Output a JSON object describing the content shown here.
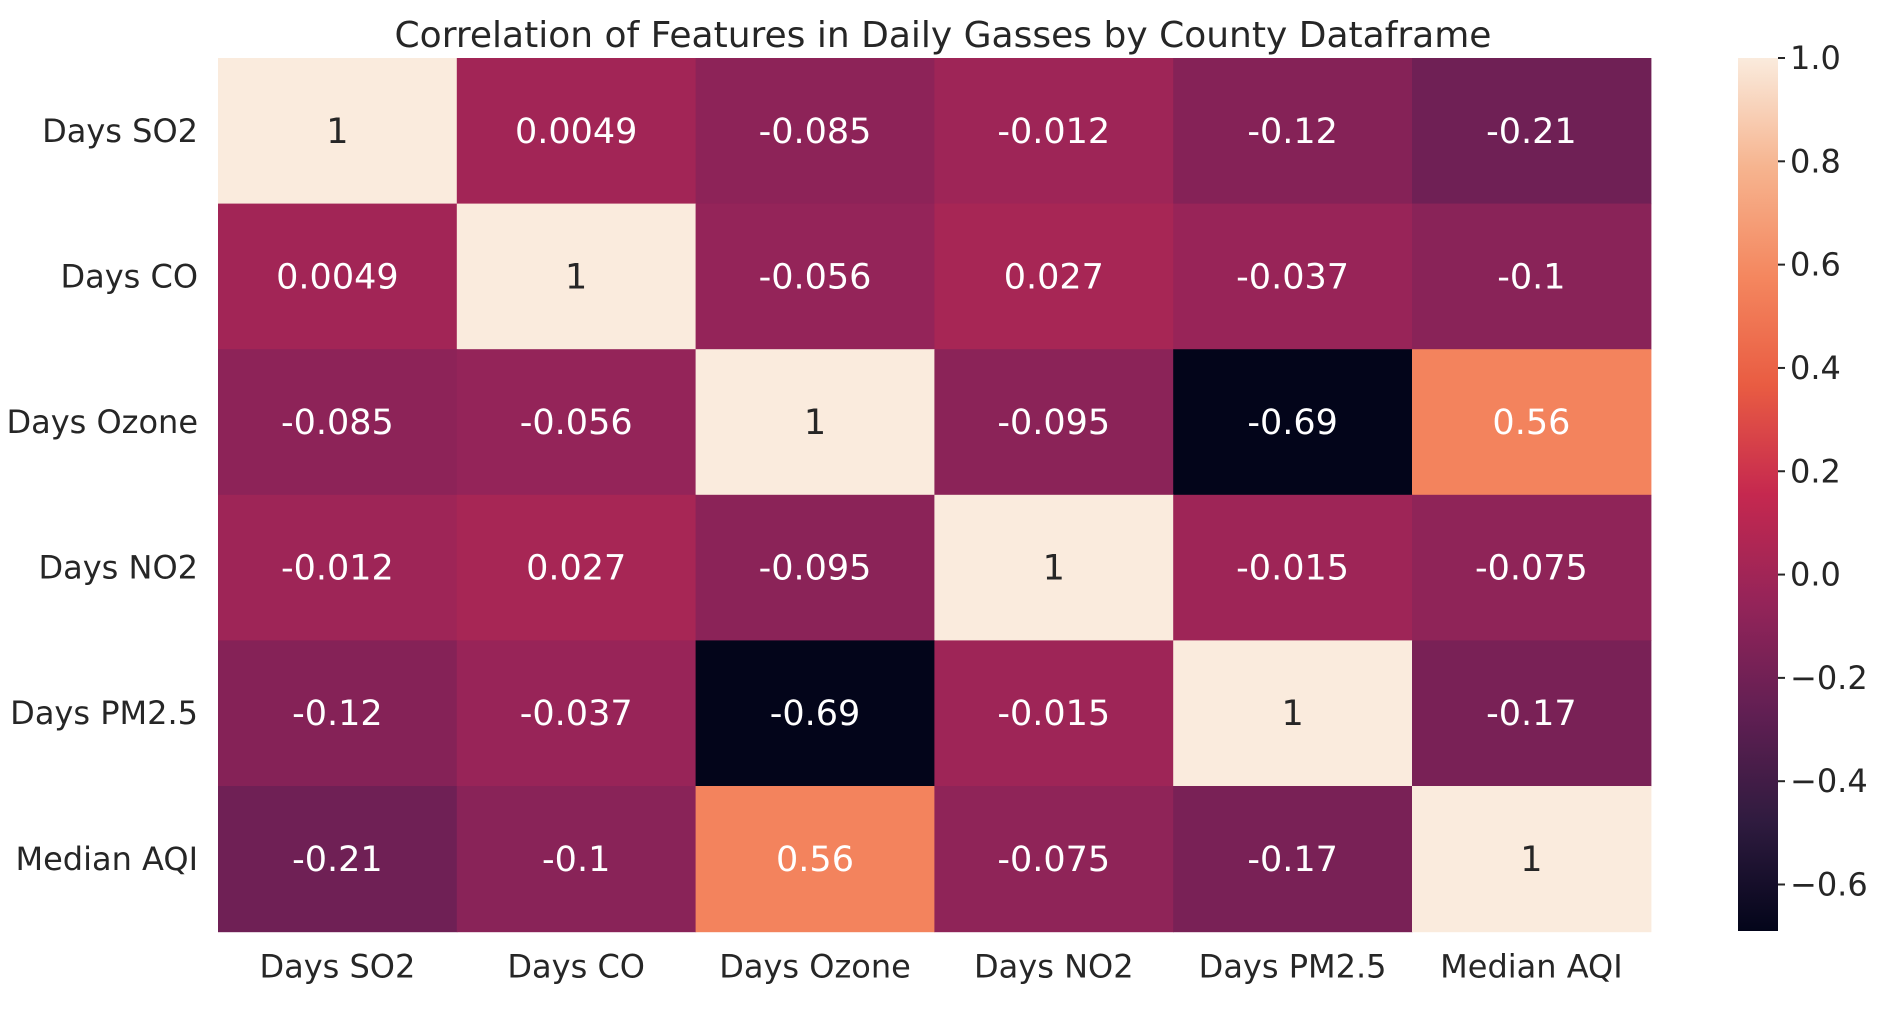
{
  "chart_data": {
    "type": "heatmap",
    "title": "Correlation of Features in Daily Gasses by County Dataframe",
    "x_labels": [
      "Days SO2",
      "Days CO",
      "Days Ozone",
      "Days NO2",
      "Days PM2.5",
      "Median AQI"
    ],
    "y_labels": [
      "Days SO2",
      "Days CO",
      "Days Ozone",
      "Days NO2",
      "Days PM2.5",
      "Median AQI"
    ],
    "values": [
      [
        1,
        0.0049,
        -0.085,
        -0.012,
        -0.12,
        -0.21
      ],
      [
        0.0049,
        1,
        -0.056,
        0.027,
        -0.037,
        -0.1
      ],
      [
        -0.085,
        -0.056,
        1,
        -0.095,
        -0.69,
        0.56
      ],
      [
        -0.012,
        0.027,
        -0.095,
        1,
        -0.015,
        -0.075
      ],
      [
        -0.12,
        -0.037,
        -0.69,
        -0.015,
        1,
        -0.17
      ],
      [
        -0.21,
        -0.1,
        0.56,
        -0.075,
        -0.17,
        1
      ]
    ],
    "annotations": [
      [
        "1",
        "0.0049",
        "-0.085",
        "-0.012",
        "-0.12",
        "-0.21"
      ],
      [
        "0.0049",
        "1",
        "-0.056",
        "0.027",
        "-0.037",
        "-0.1"
      ],
      [
        "-0.085",
        "-0.056",
        "1",
        "-0.095",
        "-0.69",
        "0.56"
      ],
      [
        "-0.012",
        "0.027",
        "-0.095",
        "1",
        "-0.015",
        "-0.075"
      ],
      [
        "-0.12",
        "-0.037",
        "-0.69",
        "-0.015",
        "1",
        "-0.17"
      ],
      [
        "-0.21",
        "-0.1",
        "0.56",
        "-0.075",
        "-0.17",
        "1"
      ]
    ],
    "colorbar": {
      "min": -0.69,
      "max": 1.0,
      "ticks": [
        1.0,
        0.8,
        0.6,
        0.4,
        0.2,
        0.0,
        -0.2,
        -0.4,
        -0.6
      ],
      "tick_labels": [
        "1.0",
        "0.8",
        "0.6",
        "0.4",
        "0.2",
        "0.0",
        "−0.2",
        "−0.4",
        "−0.6"
      ]
    },
    "colormap": "rocket",
    "colormap_stops": [
      [
        0.0,
        "#03051A"
      ],
      [
        0.125,
        "#2F1B3F"
      ],
      [
        0.25,
        "#611F53"
      ],
      [
        0.375,
        "#942459"
      ],
      [
        0.5,
        "#C5284F"
      ],
      [
        0.625,
        "#E95C42"
      ],
      [
        0.75,
        "#F4875F"
      ],
      [
        0.875,
        "#F6B48F"
      ],
      [
        1.0,
        "#FAEBDD"
      ]
    ],
    "grid": false,
    "legend": "colorbar-right"
  }
}
